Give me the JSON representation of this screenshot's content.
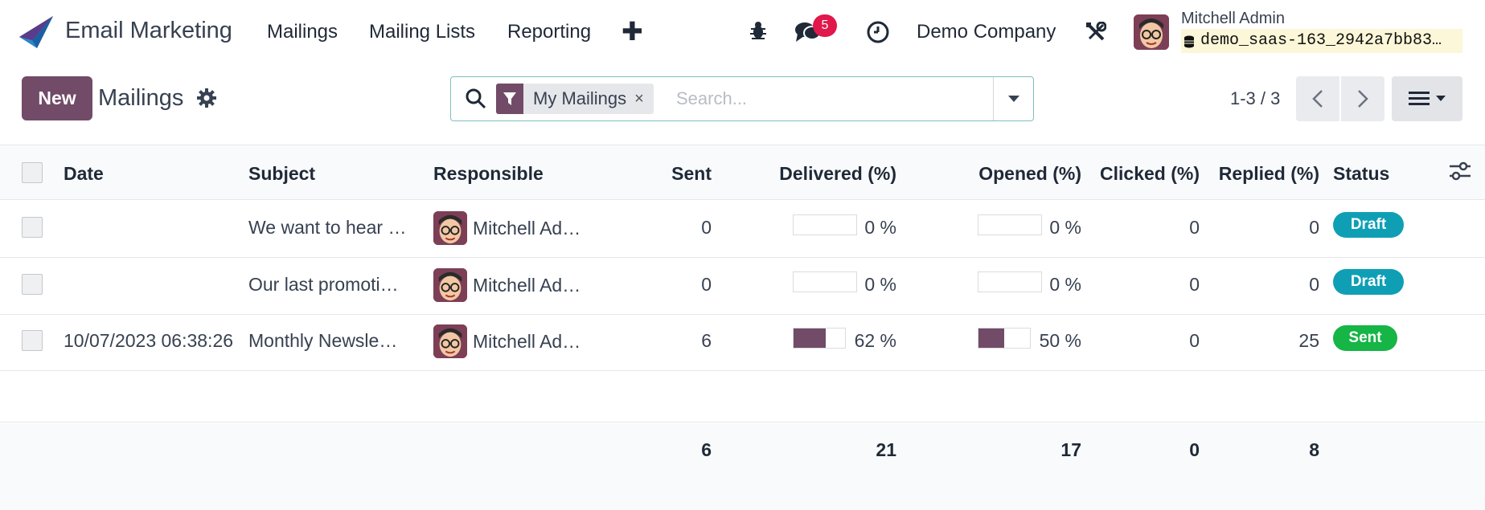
{
  "navbar": {
    "app_name": "Email Marketing",
    "menu": [
      "Mailings",
      "Mailing Lists",
      "Reporting"
    ],
    "new_menu_symbol": "✚",
    "messages_count": "5",
    "company": "Demo Company",
    "user_name": "Mitchell Admin",
    "database": "demo_saas-163_2942a7bb83…",
    "brand_color": "#714b67"
  },
  "control": {
    "new_label": "New",
    "title": "Mailings",
    "search": {
      "facet": "My Mailings",
      "facet_close": "×",
      "placeholder": "Search..."
    },
    "pager": "1-3 / 3"
  },
  "table": {
    "headers": {
      "date": "Date",
      "subject": "Subject",
      "responsible": "Responsible",
      "sent": "Sent",
      "delivered": "Delivered (%)",
      "opened": "Opened (%)",
      "clicked": "Clicked (%)",
      "replied": "Replied (%)",
      "status": "Status"
    },
    "rows": [
      {
        "date": "",
        "subject": "We want to hear …",
        "responsible": "Mitchell Ad…",
        "sent": "0",
        "delivered_label": "0 %",
        "delivered_fraction": 0,
        "opened_label": "0 %",
        "opened_fraction": 0,
        "clicked": "0",
        "replied": "0",
        "status": "Draft",
        "status_color": "#0f9fb5"
      },
      {
        "date": "",
        "subject": "Our last promoti…",
        "responsible": "Mitchell Ad…",
        "sent": "0",
        "delivered_label": "0 %",
        "delivered_fraction": 0,
        "opened_label": "0 %",
        "opened_fraction": 0,
        "clicked": "0",
        "replied": "0",
        "status": "Draft",
        "status_color": "#0f9fb5"
      },
      {
        "date": "10/07/2023 06:38:26",
        "subject": "Monthly Newsle…",
        "responsible": "Mitchell Ad…",
        "sent": "6",
        "delivered_label": "62 %",
        "delivered_fraction": 0.62,
        "opened_label": "50 %",
        "opened_fraction": 0.5,
        "clicked": "0",
        "replied": "25",
        "status": "Sent",
        "status_color": "#15b546"
      }
    ],
    "totals": {
      "sent": "6",
      "delivered": "21",
      "opened": "17",
      "clicked": "0",
      "replied": "8"
    }
  }
}
